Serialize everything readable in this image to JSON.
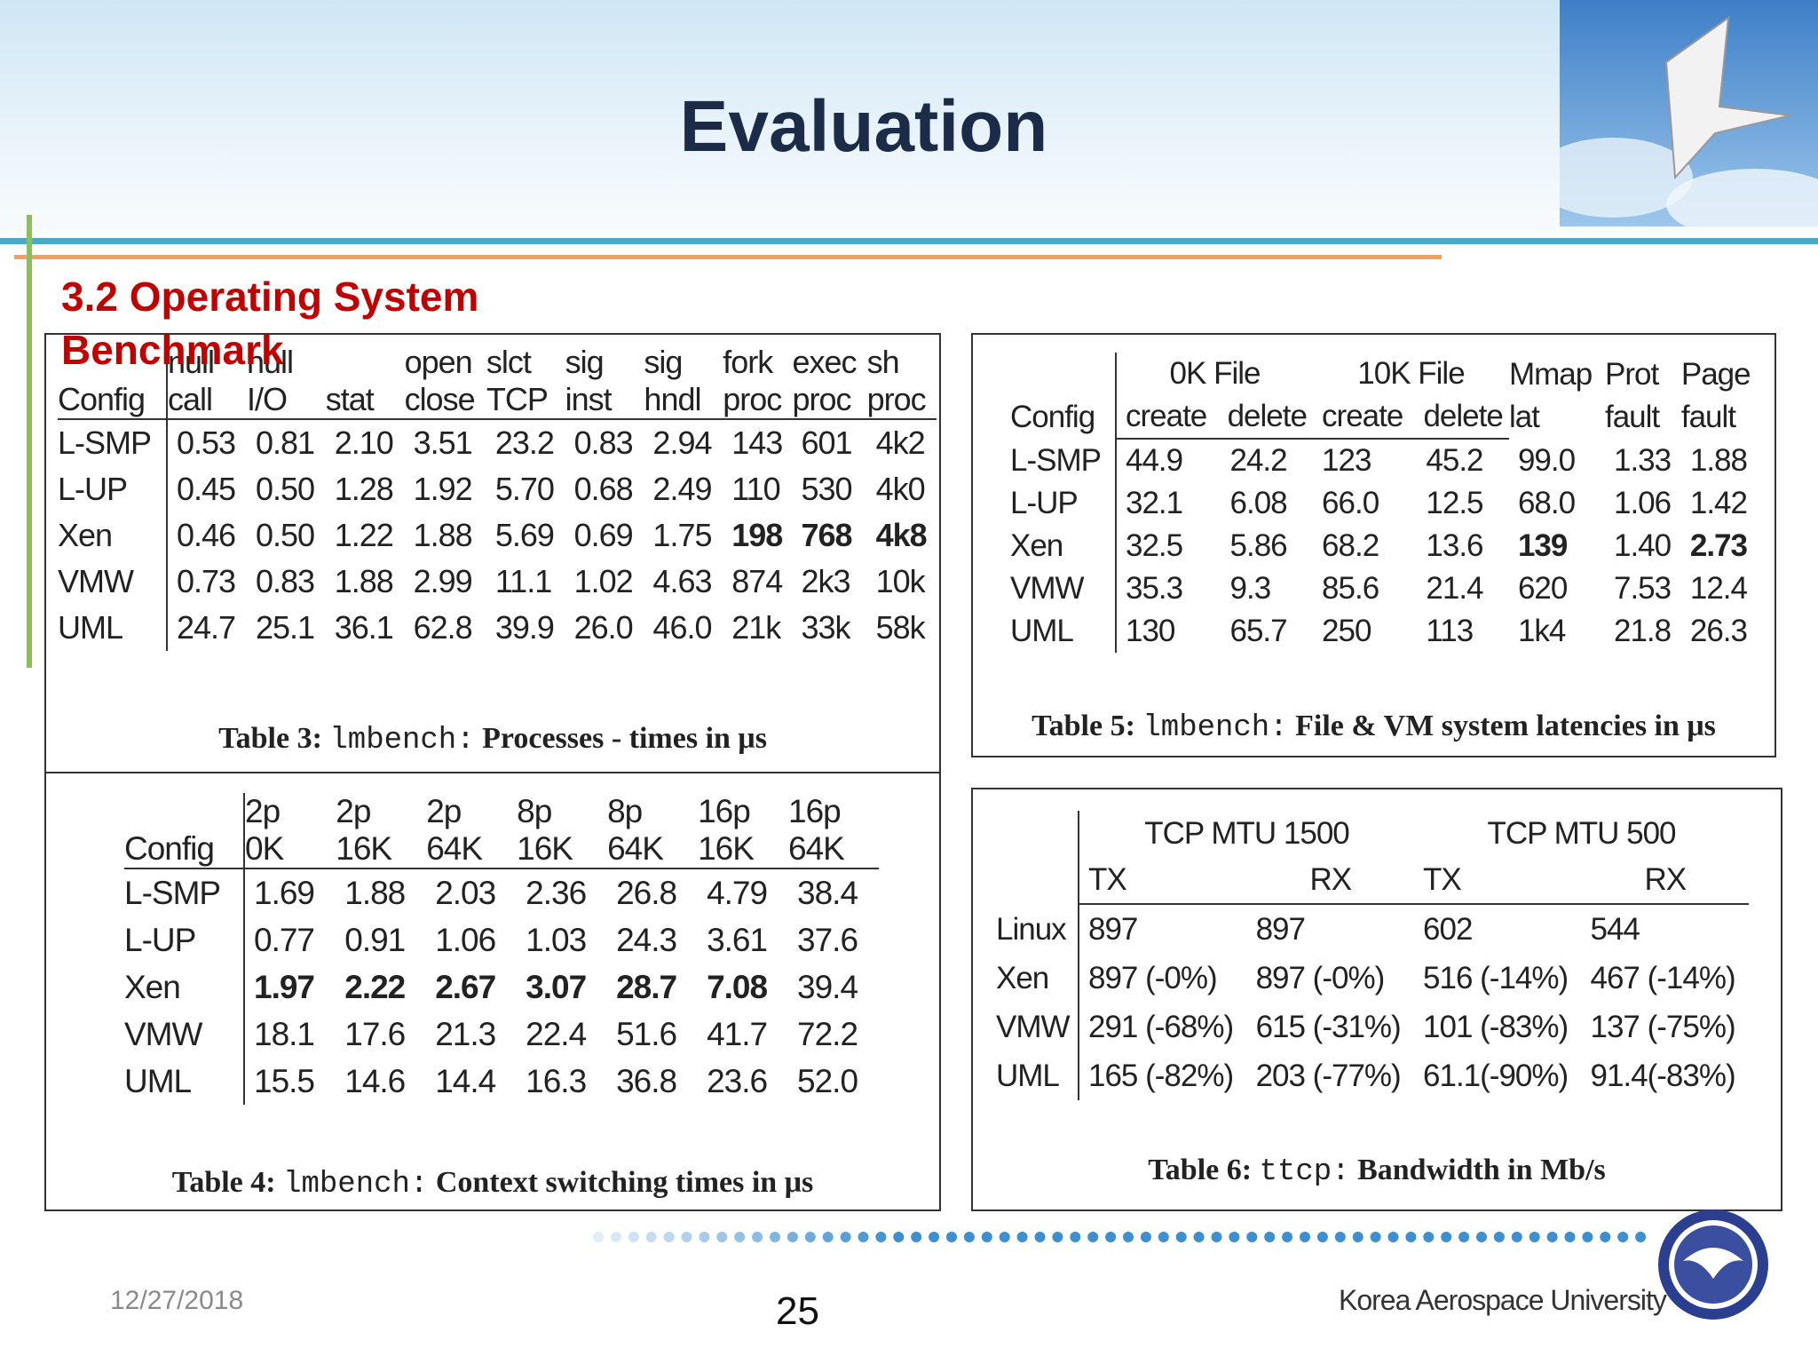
{
  "title": "Evaluation",
  "subtitle": "3.2 Operating System Benchmark",
  "tables": [
    {
      "header": [
        "Config",
        "null\ncall",
        "null\nI/O",
        "stat",
        "open\nclose",
        "slct\nTCP",
        "sig\ninst",
        "sig\nhndl",
        "fork\nproc",
        "exec\nproc",
        "sh\nproc"
      ],
      "rows": [
        [
          "L-SMP",
          "0.53",
          "0.81",
          "2.10",
          "3.51",
          "23.2",
          "0.83",
          "2.94",
          "143",
          "601",
          "4k2"
        ],
        [
          "L-UP",
          "0.45",
          "0.50",
          "1.28",
          "1.92",
          "5.70",
          "0.68",
          "2.49",
          "110",
          "530",
          "4k0"
        ],
        [
          "Xen",
          "0.46",
          "0.50",
          "1.22",
          "1.88",
          "5.69",
          "0.69",
          "1.75",
          "198",
          "768",
          "4k8"
        ],
        [
          "VMW",
          "0.73",
          "0.83",
          "1.88",
          "2.99",
          "11.1",
          "1.02",
          "4.63",
          "874",
          "2k3",
          "10k"
        ],
        [
          "UML",
          "24.7",
          "25.1",
          "36.1",
          "62.8",
          "39.9",
          "26.0",
          "46.0",
          "21k",
          "33k",
          "58k"
        ]
      ],
      "caption": {
        "label": "Table 3:",
        "tool": "lmbench:",
        "text": "Processes - times in μs"
      }
    },
    {
      "header": [
        "Config",
        "2p\n0K",
        "2p\n16K",
        "2p\n64K",
        "8p\n16K",
        "8p\n64K",
        "16p\n16K",
        "16p\n64K"
      ],
      "rows": [
        [
          "L-SMP",
          "1.69",
          "1.88",
          "2.03",
          "2.36",
          "26.8",
          "4.79",
          "38.4"
        ],
        [
          "L-UP",
          "0.77",
          "0.91",
          "1.06",
          "1.03",
          "24.3",
          "3.61",
          "37.6"
        ],
        [
          "Xen",
          "1.97",
          "2.22",
          "2.67",
          "3.07",
          "28.7",
          "7.08",
          "39.4"
        ],
        [
          "VMW",
          "18.1",
          "17.6",
          "21.3",
          "22.4",
          "51.6",
          "41.7",
          "72.2"
        ],
        [
          "UML",
          "15.5",
          "14.6",
          "14.4",
          "16.3",
          "36.8",
          "23.6",
          "52.0"
        ]
      ],
      "caption": {
        "label": "Table 4:",
        "tool": "lmbench:",
        "text": "Context switching times in μs"
      }
    },
    {
      "header": [
        "Config",
        {
          "group": "0K File",
          "columns": [
            "create",
            "delete"
          ]
        },
        {
          "group": "10K File",
          "columns": [
            "create",
            "delete"
          ]
        },
        "Mmap\nlat",
        "Prot\nfault",
        "Page\nfault"
      ],
      "rows": [
        [
          "L-SMP",
          "44.9",
          "24.2",
          "123",
          "45.2",
          "99.0",
          "1.33",
          "1.88"
        ],
        [
          "L-UP",
          "32.1",
          "6.08",
          "66.0",
          "12.5",
          "68.0",
          "1.06",
          "1.42"
        ],
        [
          "Xen",
          "32.5",
          "5.86",
          "68.2",
          "13.6",
          "139",
          "1.40",
          "2.73"
        ],
        [
          "VMW",
          "35.3",
          "9.3",
          "85.6",
          "21.4",
          "620",
          "7.53",
          "12.4"
        ],
        [
          "UML",
          "130",
          "65.7",
          "250",
          "113",
          "1k4",
          "21.8",
          "26.3"
        ]
      ],
      "caption": {
        "label": "Table 5:",
        "tool": "lmbench:",
        "text": "File & VM system latencies in μs"
      }
    },
    {
      "header": [
        {
          "group": "TCP MTU 1500",
          "columns": [
            "TX",
            "RX"
          ]
        },
        {
          "group": "TCP MTU 500",
          "columns": [
            "TX",
            "RX"
          ]
        }
      ],
      "rows": [
        [
          "Linux",
          "897",
          "897",
          "602",
          "544"
        ],
        [
          "Xen",
          "897 (-0%)",
          "897 (-0%)",
          "516 (-14%)",
          "467 (-14%)"
        ],
        [
          "VMW",
          "291 (-68%)",
          "615 (-31%)",
          "101 (-83%)",
          "137 (-75%)"
        ],
        [
          "UML",
          "165 (-82%)",
          "203 (-77%)",
          "61.1(-90%)",
          "91.4(-83%)"
        ]
      ],
      "caption": {
        "label": "Table 6:",
        "tool": "ttcp:",
        "text": "Bandwidth in Mb/s"
      }
    }
  ],
  "footer": {
    "date": "12/27/2018",
    "page": "25",
    "institution": "Korea Aerospace University"
  }
}
